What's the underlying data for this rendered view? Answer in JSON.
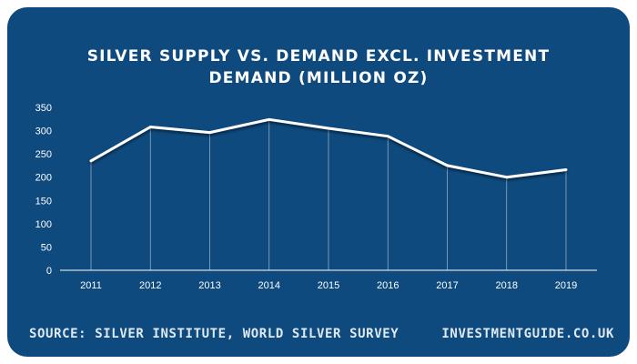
{
  "chart_data": {
    "type": "line",
    "title": "SILVER SUPPLY VS. DEMAND EXCL. INVESTMENT DEMAND (MILLION OZ)",
    "title_lines": [
      "SILVER SUPPLY VS. DEMAND EXCL. INVESTMENT",
      "DEMAND (MILLION OZ)"
    ],
    "xlabel": "",
    "ylabel": "",
    "x": [
      "2011",
      "2012",
      "2013",
      "2014",
      "2015",
      "2016",
      "2017",
      "2018",
      "2019"
    ],
    "series": [
      {
        "values": [
          235,
          308,
          296,
          324,
          305,
          288,
          225,
          200,
          216
        ]
      }
    ],
    "ylim": [
      0,
      350
    ],
    "yticks": [
      0,
      50,
      100,
      150,
      200,
      250,
      300,
      350
    ],
    "grid": false,
    "drop_lines": true,
    "colors": {
      "background": "#0e4a7e",
      "line": "#ffffff",
      "text": "#ffffff"
    }
  },
  "footer": {
    "source": "SOURCE: SILVER INSTITUTE, WORLD SILVER SURVEY",
    "website": "INVESTMENTGUIDE.CO.UK"
  }
}
